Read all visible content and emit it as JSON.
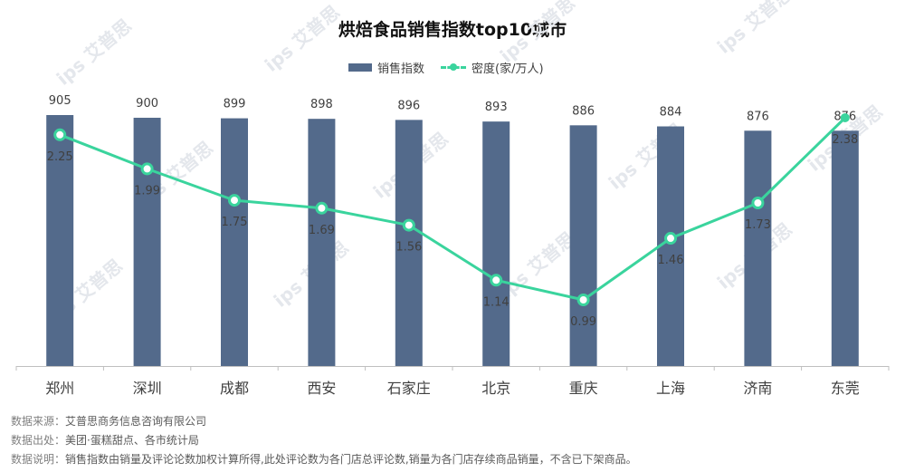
{
  "colors": {
    "bar": "#536a8b",
    "line": "#3ad49d",
    "axis": "#bfbfbf",
    "watermark": "#e4e7ec"
  },
  "watermark": "ips 艾普思",
  "legend": {
    "bar_label": "销售指数",
    "line_label": "密度(家/万人)"
  },
  "notes": [
    {
      "label": "数据来源：",
      "text": "艾普思商务信息咨询有限公司"
    },
    {
      "label": "数据出处：",
      "text": "美团·蛋糕甜点、各市统计局"
    },
    {
      "label": "数据说明：",
      "text": "销售指数由销量及评论论数加权计算所得,此处评论数为各门店总评论数,销量为各门店存续商品销量，不含已下架商品。"
    }
  ],
  "chart_data": {
    "type": "bar",
    "title": "烘焙食品销售指数top10城市",
    "categories": [
      "郑州",
      "深圳",
      "成都",
      "西安",
      "石家庄",
      "北京",
      "重庆",
      "上海",
      "济南",
      "东莞"
    ],
    "series": [
      {
        "name": "销售指数",
        "type": "bar",
        "values": [
          905,
          900,
          899,
          898,
          896,
          893,
          886,
          884,
          876,
          876
        ]
      },
      {
        "name": "密度(家/万人)",
        "type": "line",
        "values": [
          2.25,
          1.99,
          1.75,
          1.69,
          1.56,
          1.14,
          0.99,
          1.46,
          1.73,
          2.38
        ]
      }
    ],
    "legend_position": "top-center",
    "grid": false
  }
}
